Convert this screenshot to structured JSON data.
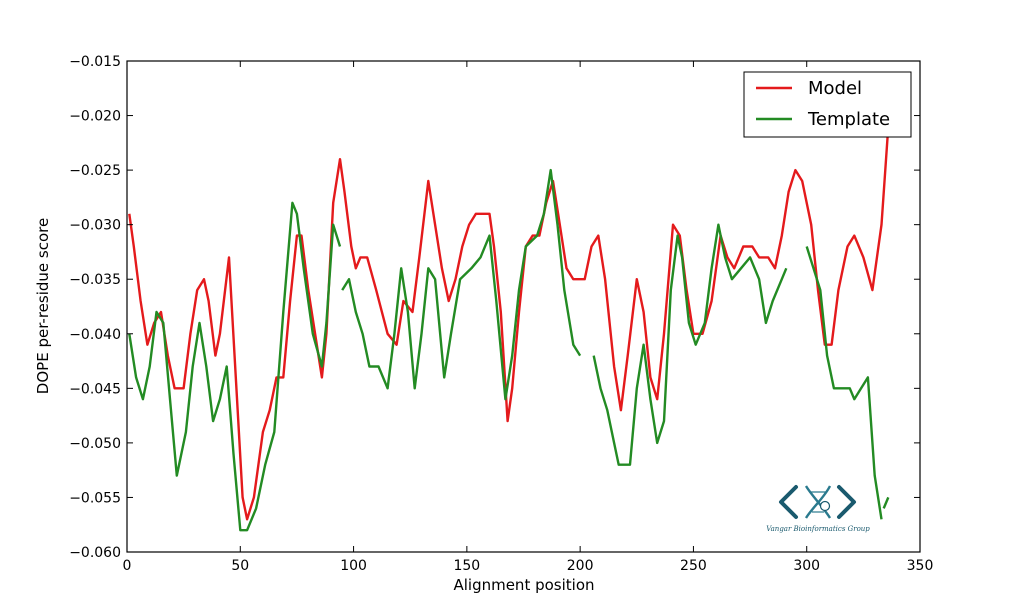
{
  "chart_data": {
    "type": "line",
    "title": "",
    "xlabel": "Alignment position",
    "ylabel": "DOPE per-residue score",
    "xlim": [
      0,
      350
    ],
    "ylim": [
      -0.06,
      -0.015
    ],
    "xticks": [
      0,
      50,
      100,
      150,
      200,
      250,
      300,
      350
    ],
    "xtick_labels": [
      "0",
      "50",
      "100",
      "150",
      "200",
      "250",
      "300",
      "350"
    ],
    "yticks": [
      -0.015,
      -0.02,
      -0.025,
      -0.03,
      -0.035,
      -0.04,
      -0.045,
      -0.05,
      -0.055,
      -0.06
    ],
    "ytick_labels": [
      "−0.015",
      "−0.020",
      "−0.025",
      "−0.030",
      "−0.035",
      "−0.040",
      "−0.045",
      "−0.050",
      "−0.055",
      "−0.060"
    ],
    "grid": false,
    "legend_position": "top-right",
    "series": [
      {
        "name": "Model",
        "color": "#e41a1c",
        "segments": [
          [
            [
              1,
              -0.029
            ],
            [
              3,
              -0.032
            ],
            [
              6,
              -0.037
            ],
            [
              9,
              -0.041
            ],
            [
              12,
              -0.039
            ],
            [
              15,
              -0.038
            ],
            [
              18,
              -0.042
            ],
            [
              21,
              -0.045
            ],
            [
              25,
              -0.045
            ],
            [
              28,
              -0.04
            ],
            [
              31,
              -0.036
            ],
            [
              34,
              -0.035
            ],
            [
              36,
              -0.037
            ],
            [
              39,
              -0.042
            ],
            [
              41,
              -0.04
            ],
            [
              45,
              -0.033
            ],
            [
              48,
              -0.044
            ],
            [
              51,
              -0.055
            ],
            [
              53,
              -0.057
            ],
            [
              56,
              -0.055
            ],
            [
              60,
              -0.049
            ],
            [
              63,
              -0.047
            ],
            [
              66,
              -0.044
            ],
            [
              69,
              -0.044
            ],
            [
              72,
              -0.037
            ],
            [
              75,
              -0.031
            ],
            [
              77,
              -0.031
            ],
            [
              80,
              -0.036
            ],
            [
              83,
              -0.04
            ],
            [
              86,
              -0.044
            ],
            [
              88,
              -0.04
            ],
            [
              91,
              -0.028
            ],
            [
              94,
              -0.024
            ],
            [
              96,
              -0.027
            ],
            [
              99,
              -0.032
            ],
            [
              101,
              -0.034
            ],
            [
              103,
              -0.033
            ],
            [
              106,
              -0.033
            ],
            [
              110,
              -0.036
            ],
            [
              115,
              -0.04
            ],
            [
              119,
              -0.041
            ],
            [
              122,
              -0.037
            ],
            [
              126,
              -0.038
            ],
            [
              129,
              -0.033
            ],
            [
              133,
              -0.026
            ],
            [
              136,
              -0.03
            ],
            [
              139,
              -0.034
            ],
            [
              142,
              -0.037
            ],
            [
              145,
              -0.035
            ],
            [
              148,
              -0.032
            ],
            [
              151,
              -0.03
            ],
            [
              154,
              -0.029
            ],
            [
              157,
              -0.029
            ],
            [
              160,
              -0.029
            ],
            [
              162,
              -0.032
            ],
            [
              165,
              -0.038
            ],
            [
              168,
              -0.048
            ],
            [
              170,
              -0.045
            ],
            [
              173,
              -0.038
            ],
            [
              176,
              -0.032
            ],
            [
              179,
              -0.031
            ],
            [
              182,
              -0.031
            ],
            [
              185,
              -0.028
            ],
            [
              188,
              -0.026
            ],
            [
              191,
              -0.03
            ],
            [
              194,
              -0.034
            ],
            [
              197,
              -0.035
            ],
            [
              202,
              -0.035
            ],
            [
              205,
              -0.032
            ],
            [
              208,
              -0.031
            ],
            [
              211,
              -0.035
            ],
            [
              215,
              -0.043
            ],
            [
              218,
              -0.047
            ],
            [
              221,
              -0.042
            ],
            [
              225,
              -0.035
            ],
            [
              228,
              -0.038
            ],
            [
              231,
              -0.044
            ],
            [
              234,
              -0.046
            ],
            [
              237,
              -0.04
            ],
            [
              241,
              -0.03
            ],
            [
              244,
              -0.031
            ],
            [
              247,
              -0.036
            ],
            [
              250,
              -0.04
            ],
            [
              254,
              -0.04
            ],
            [
              258,
              -0.037
            ],
            [
              262,
              -0.031
            ],
            [
              265,
              -0.033
            ],
            [
              268,
              -0.034
            ],
            [
              272,
              -0.032
            ],
            [
              276,
              -0.032
            ],
            [
              279,
              -0.033
            ],
            [
              283,
              -0.033
            ],
            [
              286,
              -0.034
            ],
            [
              289,
              -0.031
            ],
            [
              292,
              -0.027
            ],
            [
              295,
              -0.025
            ],
            [
              298,
              -0.026
            ],
            [
              302,
              -0.03
            ],
            [
              305,
              -0.036
            ],
            [
              308,
              -0.041
            ],
            [
              311,
              -0.041
            ],
            [
              314,
              -0.036
            ],
            [
              318,
              -0.032
            ],
            [
              321,
              -0.031
            ],
            [
              325,
              -0.033
            ],
            [
              329,
              -0.036
            ],
            [
              333,
              -0.03
            ],
            [
              336,
              -0.021
            ],
            [
              337,
              -0.017
            ]
          ]
        ]
      },
      {
        "name": "Template",
        "color": "#238b23",
        "segments": [
          [
            [
              1,
              -0.04
            ],
            [
              4,
              -0.044
            ],
            [
              7,
              -0.046
            ],
            [
              10,
              -0.043
            ],
            [
              13,
              -0.038
            ],
            [
              16,
              -0.039
            ],
            [
              19,
              -0.046
            ],
            [
              22,
              -0.053
            ],
            [
              26,
              -0.049
            ],
            [
              29,
              -0.043
            ],
            [
              32,
              -0.039
            ],
            [
              35,
              -0.043
            ],
            [
              38,
              -0.048
            ],
            [
              41,
              -0.046
            ],
            [
              44,
              -0.043
            ],
            [
              47,
              -0.051
            ],
            [
              50,
              -0.058
            ],
            [
              53,
              -0.058
            ],
            [
              57,
              -0.056
            ],
            [
              61,
              -0.052
            ],
            [
              65,
              -0.049
            ],
            [
              69,
              -0.038
            ],
            [
              73,
              -0.028
            ],
            [
              75,
              -0.029
            ],
            [
              78,
              -0.034
            ],
            [
              82,
              -0.04
            ],
            [
              86,
              -0.043
            ],
            [
              88,
              -0.039
            ],
            [
              91,
              -0.03
            ],
            [
              94,
              -0.032
            ]
          ],
          [
            [
              95,
              -0.036
            ],
            [
              98,
              -0.035
            ],
            [
              101,
              -0.038
            ],
            [
              104,
              -0.04
            ],
            [
              107,
              -0.043
            ],
            [
              111,
              -0.043
            ],
            [
              115,
              -0.045
            ],
            [
              118,
              -0.04
            ],
            [
              121,
              -0.034
            ],
            [
              124,
              -0.038
            ],
            [
              127,
              -0.045
            ],
            [
              130,
              -0.04
            ],
            [
              133,
              -0.034
            ],
            [
              136,
              -0.035
            ],
            [
              140,
              -0.044
            ],
            [
              143,
              -0.04
            ],
            [
              147,
              -0.035
            ],
            [
              152,
              -0.034
            ],
            [
              156,
              -0.033
            ],
            [
              160,
              -0.031
            ],
            [
              163,
              -0.037
            ],
            [
              167,
              -0.046
            ],
            [
              170,
              -0.042
            ],
            [
              173,
              -0.036
            ],
            [
              176,
              -0.032
            ],
            [
              181,
              -0.031
            ],
            [
              184,
              -0.029
            ],
            [
              187,
              -0.025
            ],
            [
              190,
              -0.03
            ],
            [
              193,
              -0.036
            ],
            [
              197,
              -0.041
            ],
            [
              200,
              -0.042
            ]
          ],
          [
            [
              206,
              -0.042
            ],
            [
              209,
              -0.045
            ],
            [
              212,
              -0.047
            ],
            [
              215,
              -0.05
            ],
            [
              217,
              -0.052
            ],
            [
              222,
              -0.052
            ],
            [
              225,
              -0.045
            ],
            [
              228,
              -0.041
            ],
            [
              231,
              -0.046
            ],
            [
              234,
              -0.05
            ],
            [
              237,
              -0.048
            ],
            [
              240,
              -0.036
            ],
            [
              243,
              -0.031
            ],
            [
              245,
              -0.033
            ],
            [
              248,
              -0.039
            ],
            [
              251,
              -0.041
            ],
            [
              255,
              -0.039
            ],
            [
              258,
              -0.034
            ],
            [
              261,
              -0.03
            ],
            [
              264,
              -0.033
            ],
            [
              267,
              -0.035
            ],
            [
              271,
              -0.034
            ],
            [
              275,
              -0.033
            ],
            [
              279,
              -0.035
            ],
            [
              282,
              -0.039
            ],
            [
              285,
              -0.037
            ],
            [
              289,
              -0.035
            ],
            [
              291,
              -0.034
            ]
          ],
          [
            [
              300,
              -0.032
            ],
            [
              303,
              -0.034
            ],
            [
              306,
              -0.036
            ],
            [
              309,
              -0.042
            ],
            [
              312,
              -0.045
            ],
            [
              316,
              -0.045
            ],
            [
              319,
              -0.045
            ],
            [
              321,
              -0.046
            ],
            [
              324,
              -0.045
            ],
            [
              327,
              -0.044
            ],
            [
              330,
              -0.053
            ],
            [
              333,
              -0.057
            ]
          ],
          [
            [
              336,
              -0.055
            ],
            [
              334,
              -0.056
            ]
          ]
        ]
      }
    ]
  },
  "logo": {
    "text": "Vangar Bioinformatics Group",
    "icon": "dna-brackets-logo",
    "color": "#1a5a6e"
  }
}
